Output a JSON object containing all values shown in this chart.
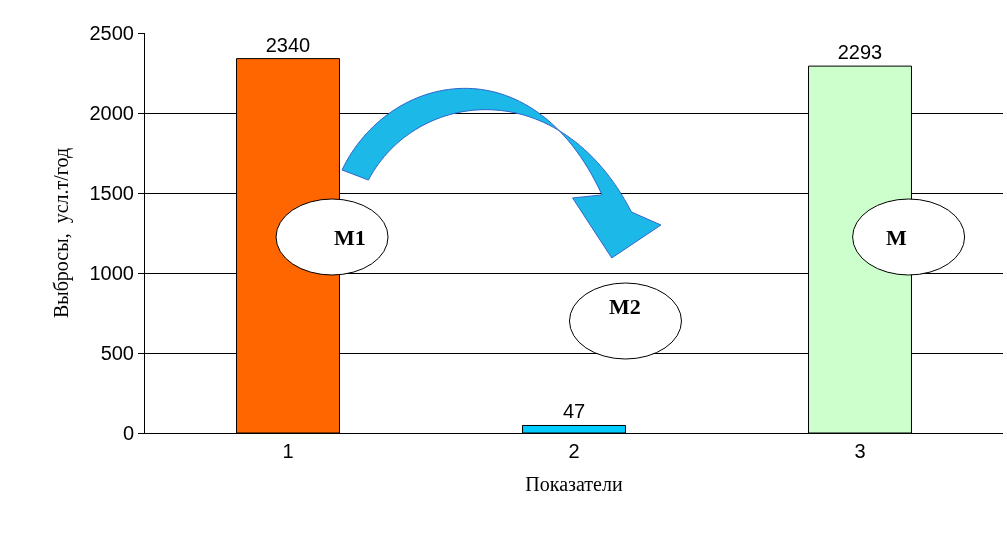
{
  "chart_data": {
    "type": "bar",
    "categories": [
      "1",
      "2",
      "3"
    ],
    "values": [
      2340,
      47,
      2293
    ],
    "colors": [
      "#ff6600",
      "#00ccff",
      "#ccffcc"
    ],
    "xlabel": "Показатели",
    "ylabel": "Выбросы,  усл.т/год",
    "ylim": [
      0,
      2500
    ],
    "yticks": [
      0,
      500,
      1000,
      1500,
      2000,
      2500
    ],
    "grid": "y",
    "data_labels": true,
    "annotations": [
      "M1",
      "M2",
      "M"
    ]
  }
}
